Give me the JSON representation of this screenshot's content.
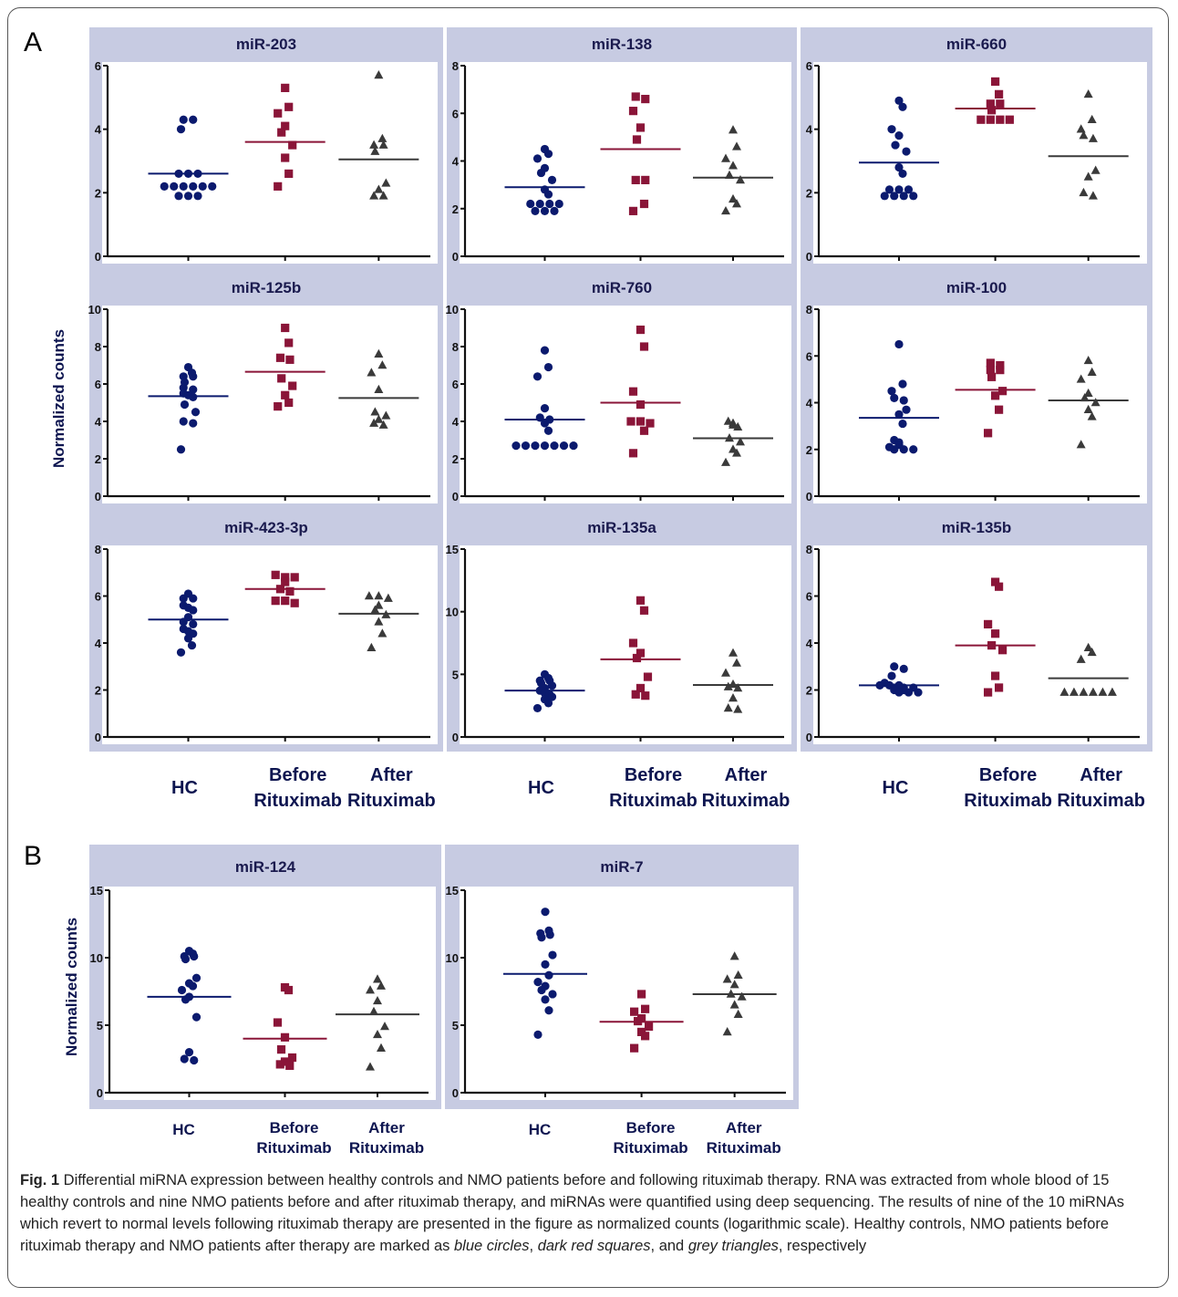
{
  "figure": {
    "panel_letter_a": "A",
    "panel_letter_b": "B",
    "ylabel": "Normalized counts",
    "groups": [
      "HC",
      "Before Rituximab",
      "After Rituximab"
    ]
  },
  "caption": {
    "label": "Fig. 1",
    "text_1": " Differential miRNA expression between healthy controls and NMO patients before and following rituximab therapy. RNA was extracted from whole blood of 15 healthy controls and nine NMO patients before and after rituximab therapy, and miRNAs were quantified using deep sequencing. The results of nine of the 10 miRNAs which revert to normal levels following rituximab therapy are presented in the figure as normalized counts (logarithmic scale). Healthy controls, NMO patients before rituximab therapy and NMO patients after therapy are marked as ",
    "italic_1": "blue circles",
    "sep_1": ", ",
    "italic_2": "dark red squares",
    "sep_2": ", and ",
    "italic_3": "grey triangles",
    "text_2": ", respectively"
  },
  "colors": {
    "hc": "#0b1a6e",
    "before": "#8a1538",
    "after": "#3a3a3a",
    "panel_bg": "#c7cbe2"
  },
  "chart_data": [
    {
      "panel": "A",
      "type": "scatter",
      "title": "miR-203",
      "ylim": [
        0,
        6
      ],
      "yticks": [
        0,
        2,
        4,
        6
      ],
      "series": [
        {
          "group": "HC",
          "values": [
            4.3,
            4.3,
            4.0,
            2.6,
            2.6,
            2.6,
            2.2,
            2.2,
            2.2,
            2.2,
            2.2,
            2.2,
            1.9,
            1.9,
            1.9
          ],
          "mean": 2.6
        },
        {
          "group": "Before Rituximab",
          "values": [
            5.3,
            4.7,
            4.5,
            4.1,
            3.9,
            3.5,
            3.1,
            2.6,
            2.2
          ],
          "mean": 3.6
        },
        {
          "group": "After Rituximab",
          "values": [
            5.7,
            3.7,
            3.5,
            3.5,
            3.3,
            2.3,
            2.1,
            1.9,
            1.9
          ],
          "mean": 3.05
        }
      ]
    },
    {
      "panel": "A",
      "type": "scatter",
      "title": "miR-138",
      "ylim": [
        0,
        8
      ],
      "yticks": [
        0,
        2,
        4,
        6,
        8
      ],
      "series": [
        {
          "group": "HC",
          "values": [
            4.5,
            4.3,
            4.1,
            3.7,
            3.5,
            3.2,
            2.8,
            2.6,
            2.2,
            2.2,
            2.2,
            2.2,
            1.9,
            1.9,
            1.9
          ],
          "mean": 2.9
        },
        {
          "group": "Before Rituximab",
          "values": [
            6.7,
            6.6,
            6.1,
            5.4,
            4.9,
            3.2,
            3.2,
            2.2,
            1.9
          ],
          "mean": 4.5
        },
        {
          "group": "After Rituximab",
          "values": [
            5.3,
            4.6,
            4.1,
            3.8,
            3.4,
            3.2,
            2.4,
            2.2,
            1.9
          ],
          "mean": 3.3
        }
      ]
    },
    {
      "panel": "A",
      "type": "scatter",
      "title": "miR-660",
      "ylim": [
        0,
        6
      ],
      "yticks": [
        0,
        2,
        4,
        6
      ],
      "series": [
        {
          "group": "HC",
          "values": [
            4.9,
            4.7,
            4.0,
            3.8,
            3.5,
            3.3,
            2.8,
            2.6,
            2.1,
            2.1,
            2.1,
            1.9,
            1.9,
            1.9,
            1.9
          ],
          "mean": 2.95
        },
        {
          "group": "Before Rituximab",
          "values": [
            5.5,
            5.1,
            4.8,
            4.8,
            4.6,
            4.3,
            4.3,
            4.3,
            4.3
          ],
          "mean": 4.65
        },
        {
          "group": "After Rituximab",
          "values": [
            5.1,
            4.3,
            4.0,
            3.8,
            3.7,
            2.7,
            2.5,
            2.0,
            1.9
          ],
          "mean": 3.15
        }
      ]
    },
    {
      "panel": "A",
      "type": "scatter",
      "title": "miR-125b",
      "ylim": [
        0,
        10
      ],
      "yticks": [
        0,
        2,
        4,
        6,
        8,
        10
      ],
      "series": [
        {
          "group": "HC",
          "values": [
            6.9,
            6.6,
            6.4,
            6.4,
            6.1,
            5.8,
            5.7,
            5.5,
            5.4,
            5.3,
            4.9,
            4.5,
            4.0,
            3.9,
            2.5
          ],
          "mean": 5.35
        },
        {
          "group": "Before Rituximab",
          "values": [
            9.0,
            8.2,
            7.4,
            7.3,
            6.3,
            5.9,
            5.4,
            5.0,
            4.8
          ],
          "mean": 6.65
        },
        {
          "group": "After Rituximab",
          "values": [
            7.6,
            7.0,
            6.6,
            5.7,
            4.5,
            4.3,
            4.1,
            3.9,
            3.8
          ],
          "mean": 5.25
        }
      ]
    },
    {
      "panel": "A",
      "type": "scatter",
      "title": "miR-760",
      "ylim": [
        0,
        10
      ],
      "yticks": [
        0,
        2,
        4,
        6,
        8,
        10
      ],
      "series": [
        {
          "group": "HC",
          "values": [
            7.8,
            6.9,
            6.4,
            4.7,
            4.2,
            4.1,
            3.9,
            3.5,
            2.7,
            2.7,
            2.7,
            2.7,
            2.7,
            2.7,
            2.7
          ],
          "mean": 4.1
        },
        {
          "group": "Before Rituximab",
          "values": [
            8.9,
            8.0,
            5.6,
            4.9,
            4.0,
            4.0,
            3.9,
            3.5,
            2.3
          ],
          "mean": 5.0
        },
        {
          "group": "After Rituximab",
          "values": [
            4.0,
            3.9,
            3.8,
            3.7,
            3.1,
            2.9,
            2.5,
            2.3,
            1.8
          ],
          "mean": 3.1
        }
      ]
    },
    {
      "panel": "A",
      "type": "scatter",
      "title": "miR-100",
      "ylim": [
        0,
        8
      ],
      "yticks": [
        0,
        2,
        4,
        6,
        8
      ],
      "series": [
        {
          "group": "HC",
          "values": [
            6.5,
            4.8,
            4.5,
            4.2,
            4.1,
            3.7,
            3.5,
            3.1,
            2.4,
            2.3,
            2.2,
            2.1,
            2.0,
            2.0,
            2.0
          ],
          "mean": 3.35
        },
        {
          "group": "Before Rituximab",
          "values": [
            5.7,
            5.6,
            5.4,
            5.4,
            5.1,
            4.5,
            4.3,
            3.7,
            2.7
          ],
          "mean": 4.55
        },
        {
          "group": "After Rituximab",
          "values": [
            5.8,
            5.3,
            5.0,
            4.4,
            4.2,
            4.0,
            3.7,
            3.4,
            2.2
          ],
          "mean": 4.1
        }
      ]
    },
    {
      "panel": "A",
      "type": "scatter",
      "title": "miR-423-3p",
      "ylim": [
        0,
        8
      ],
      "yticks": [
        0,
        2,
        4,
        6,
        8
      ],
      "series": [
        {
          "group": "HC",
          "values": [
            6.1,
            5.9,
            5.9,
            5.6,
            5.5,
            5.4,
            5.1,
            4.9,
            4.8,
            4.6,
            4.5,
            4.4,
            4.2,
            3.9,
            3.6
          ],
          "mean": 5.0
        },
        {
          "group": "Before Rituximab",
          "values": [
            6.9,
            6.8,
            6.8,
            6.6,
            6.3,
            6.2,
            5.8,
            5.8,
            5.7
          ],
          "mean": 6.3
        },
        {
          "group": "After Rituximab",
          "values": [
            6.0,
            6.0,
            5.9,
            5.6,
            5.4,
            5.2,
            4.9,
            4.4,
            3.8
          ],
          "mean": 5.25
        }
      ]
    },
    {
      "panel": "A",
      "type": "scatter",
      "title": "miR-135a",
      "ylim": [
        0,
        15
      ],
      "yticks": [
        0,
        5,
        10,
        15
      ],
      "series": [
        {
          "group": "HC",
          "values": [
            5.0,
            4.7,
            4.5,
            4.5,
            4.3,
            4.1,
            3.9,
            3.7,
            3.6,
            3.5,
            3.4,
            3.2,
            3.0,
            2.7,
            2.3
          ],
          "mean": 3.7
        },
        {
          "group": "Before Rituximab",
          "values": [
            10.9,
            10.1,
            7.5,
            6.7,
            6.3,
            4.8,
            3.9,
            3.4,
            3.3
          ],
          "mean": 6.2
        },
        {
          "group": "After Rituximab",
          "values": [
            6.7,
            5.9,
            5.1,
            4.2,
            4.0,
            3.9,
            3.1,
            2.3,
            2.2
          ],
          "mean": 4.15
        }
      ]
    },
    {
      "panel": "A",
      "type": "scatter",
      "title": "miR-135b",
      "ylim": [
        0,
        8
      ],
      "yticks": [
        0,
        2,
        4,
        6,
        8
      ],
      "series": [
        {
          "group": "HC",
          "values": [
            3.0,
            2.9,
            2.6,
            2.3,
            2.2,
            2.2,
            2.2,
            2.1,
            2.1,
            2.1,
            2.0,
            2.0,
            1.9,
            1.9,
            1.9
          ],
          "mean": 2.2
        },
        {
          "group": "Before Rituximab",
          "values": [
            6.6,
            6.4,
            4.8,
            4.4,
            3.9,
            3.7,
            2.6,
            2.1,
            1.9
          ],
          "mean": 3.9
        },
        {
          "group": "After Rituximab",
          "values": [
            3.8,
            3.6,
            3.3,
            1.9,
            1.9,
            1.9,
            1.9,
            1.9,
            1.9
          ],
          "mean": 2.5
        }
      ]
    },
    {
      "panel": "B",
      "type": "scatter",
      "title": "miR-124",
      "ylim": [
        0,
        15
      ],
      "yticks": [
        0,
        5,
        10,
        15
      ],
      "series": [
        {
          "group": "HC",
          "values": [
            10.5,
            10.3,
            10.1,
            10.1,
            9.9,
            8.5,
            8.1,
            7.9,
            7.6,
            7.1,
            6.9,
            5.6,
            3.0,
            2.5,
            2.4
          ],
          "mean": 7.1
        },
        {
          "group": "Before Rituximab",
          "values": [
            7.8,
            7.6,
            5.2,
            4.1,
            3.2,
            2.6,
            2.3,
            2.1,
            2.0
          ],
          "mean": 4.0
        },
        {
          "group": "After Rituximab",
          "values": [
            8.4,
            7.9,
            7.6,
            6.8,
            6.0,
            4.9,
            4.3,
            3.3,
            1.9
          ],
          "mean": 5.8
        }
      ]
    },
    {
      "panel": "B",
      "type": "scatter",
      "title": "miR-7",
      "ylim": [
        0,
        15
      ],
      "yticks": [
        0,
        5,
        10,
        15
      ],
      "series": [
        {
          "group": "HC",
          "values": [
            13.4,
            12.0,
            11.8,
            11.7,
            11.5,
            10.2,
            9.5,
            8.7,
            8.2,
            7.9,
            7.6,
            7.3,
            6.9,
            6.1,
            4.3
          ],
          "mean": 8.8
        },
        {
          "group": "Before Rituximab",
          "values": [
            7.3,
            6.2,
            6.0,
            5.5,
            5.3,
            4.9,
            4.5,
            4.2,
            3.3
          ],
          "mean": 5.25
        },
        {
          "group": "After Rituximab",
          "values": [
            10.1,
            8.7,
            8.4,
            8.0,
            7.3,
            7.1,
            6.5,
            5.8,
            4.5
          ],
          "mean": 7.3
        }
      ]
    }
  ]
}
